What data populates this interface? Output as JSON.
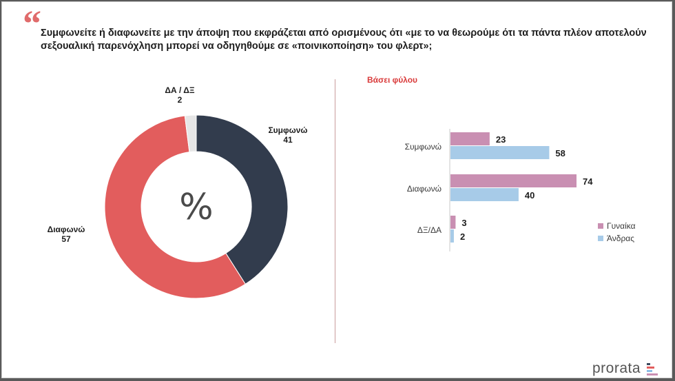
{
  "quote_mark": "“",
  "question": "Συμφωνείτε ή διαφωνείτε με την άποψη που εκφράζεται από ορισμένους ότι «με το να θεωρούμε ότι τα πάντα πλέον αποτελούν σεξουαλική παρενόχληση μπορεί να οδηγηθούμε σε «ποινικοποίηση» του φλερτ»;",
  "bar_section_title": "Βάσει φύλου",
  "logo_text": "prorata",
  "donut_center": "%",
  "chart_data": [
    {
      "type": "pie",
      "variant": "donut",
      "slices": [
        {
          "label": "Συμφωνώ",
          "value": 41,
          "color": "#323c4d"
        },
        {
          "label": "Διαφωνώ",
          "value": 57,
          "color": "#e25d5d"
        },
        {
          "label": "ΔΑ / ΔΞ",
          "value": 2,
          "color": "#e6e6e6"
        }
      ]
    },
    {
      "type": "bar",
      "orientation": "horizontal",
      "title": "Βάσει φύλου",
      "categories": [
        "Συμφωνώ",
        "Διαφωνώ",
        "ΔΞ/ΔΑ"
      ],
      "series": [
        {
          "name": "Γυναίκα",
          "values": [
            23,
            74,
            3
          ],
          "color": "#c98fb2"
        },
        {
          "name": "Άνδρας",
          "values": [
            58,
            40,
            2
          ],
          "color": "#a7cbe8"
        }
      ],
      "xlim": [
        0,
        80
      ],
      "legend": "right",
      "grid": false
    }
  ]
}
